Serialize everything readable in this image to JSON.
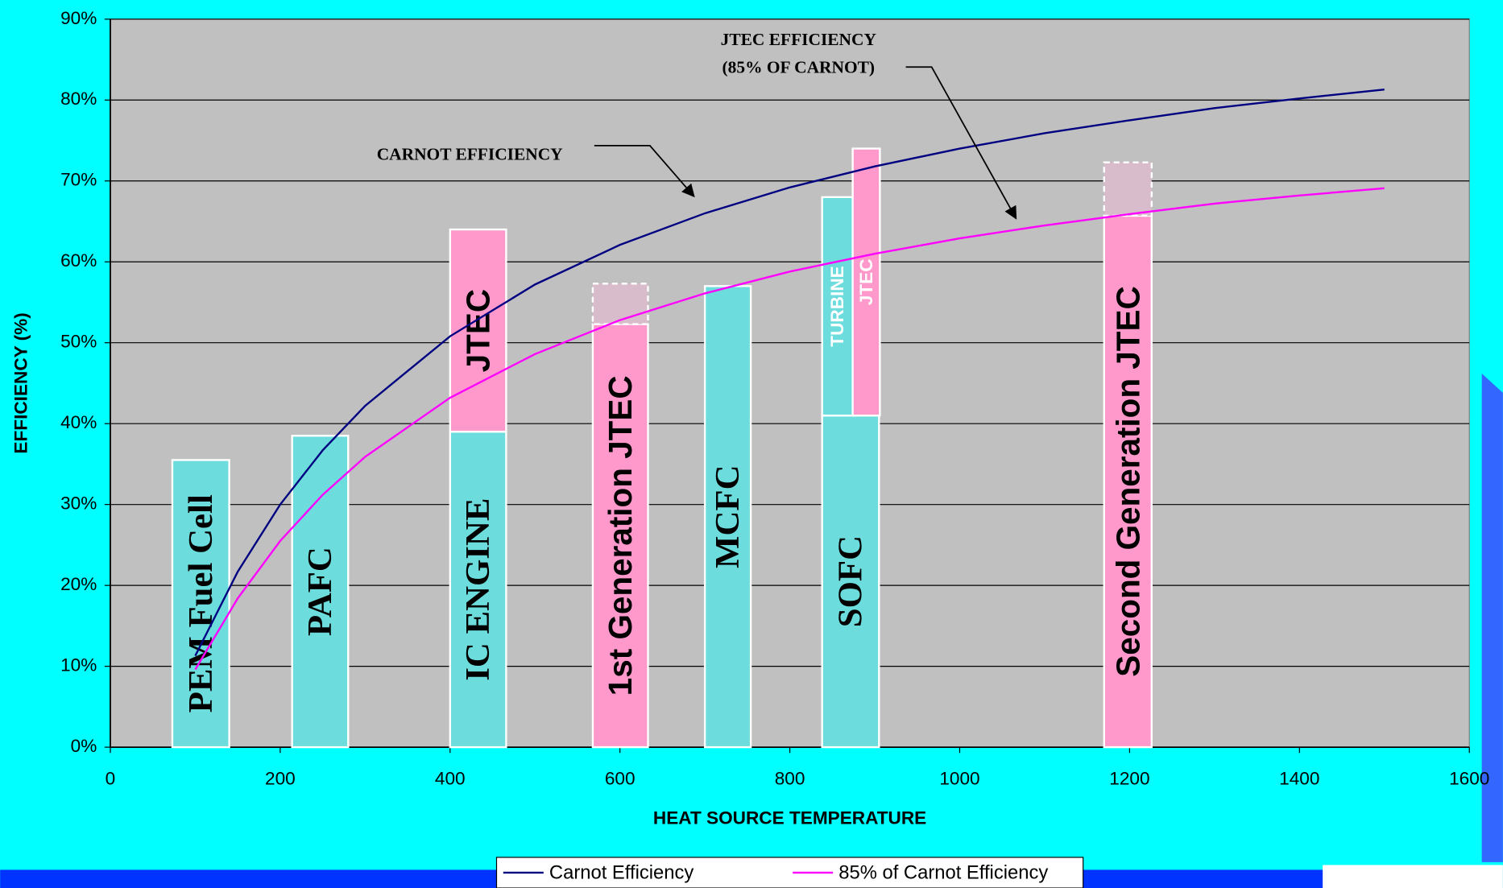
{
  "chart_data": {
    "type": "line",
    "xlabel": "HEAT SOURCE TEMPERATURE",
    "ylabel": "EFFICIENCY (%)",
    "xlim": [
      0,
      1600
    ],
    "ylim": [
      0,
      90
    ],
    "xticks": [
      0,
      200,
      400,
      600,
      800,
      1000,
      1200,
      1400,
      1600
    ],
    "yticks": [
      {
        "value": 0,
        "label": "0%"
      },
      {
        "value": 10,
        "label": "10%"
      },
      {
        "value": 20,
        "label": "20%"
      },
      {
        "value": 30,
        "label": "30%"
      },
      {
        "value": 40,
        "label": "40%"
      },
      {
        "value": 50,
        "label": "50%"
      },
      {
        "value": 60,
        "label": "60%"
      },
      {
        "value": 70,
        "label": "70%"
      },
      {
        "value": 80,
        "label": "80%"
      },
      {
        "value": 90,
        "label": "90%"
      }
    ],
    "grid": true,
    "x": [
      100,
      150,
      200,
      250,
      300,
      400,
      500,
      600,
      700,
      800,
      900,
      1000,
      1100,
      1200,
      1300,
      1400,
      1500
    ],
    "series": [
      {
        "name": "Carnot Efficiency",
        "color": "#000080",
        "values": [
          11.3,
          21.7,
          30.0,
          36.7,
          42.2,
          50.8,
          57.2,
          62.1,
          66.0,
          69.2,
          71.8,
          74.0,
          75.9,
          77.5,
          79.0,
          80.2,
          81.3
        ]
      },
      {
        "name": "85% of Carnot Efficiency",
        "color": "#FF00FF",
        "values": [
          9.6,
          18.4,
          25.5,
          31.2,
          35.9,
          43.2,
          48.6,
          52.8,
          56.1,
          58.8,
          61.0,
          62.9,
          64.5,
          65.9,
          67.2,
          68.2,
          69.1
        ]
      }
    ],
    "bars": [
      {
        "label": "PEM  Fuel Cell",
        "x": [
          73,
          140
        ],
        "y": [
          0,
          35.5
        ],
        "color": "#6CDCDC",
        "font": "serif",
        "text_color": "#000000"
      },
      {
        "label": "PAFC",
        "x": [
          214,
          280
        ],
        "y": [
          0,
          38.5
        ],
        "color": "#6CDCDC",
        "font": "serif",
        "text_color": "#000000"
      },
      {
        "label": "IC ENGINE",
        "x": [
          400,
          466
        ],
        "y": [
          0,
          39
        ],
        "color": "#6CDCDC",
        "font": "serif",
        "text_color": "#000000"
      },
      {
        "label": "JTEC",
        "x": [
          400,
          466
        ],
        "y": [
          39,
          64
        ],
        "color": "#FF99CC",
        "font": "sans",
        "text_color": "#000000"
      },
      {
        "label": "1st Generation JTEC",
        "x": [
          568,
          633
        ],
        "y": [
          0,
          52.3
        ],
        "color": "#FF99CC",
        "font": "sans",
        "text_color": "#000000"
      },
      {
        "x": [
          568,
          633
        ],
        "y": [
          52.3,
          57.3
        ],
        "color": "#D8BCCB",
        "dashed": true
      },
      {
        "label": "MCFC",
        "x": [
          700,
          754
        ],
        "y": [
          0,
          57
        ],
        "color": "#6CDCDC",
        "font": "serif",
        "text_color": "#000000"
      },
      {
        "label": "SOFC",
        "x": [
          838,
          905
        ],
        "y": [
          0,
          41
        ],
        "color": "#6CDCDC",
        "font": "serif",
        "text_color": "#000000"
      },
      {
        "label": "TURBINE",
        "x": [
          838,
          874
        ],
        "y": [
          41,
          68
        ],
        "color": "#6CDCDC",
        "font": "sans-small",
        "text_color": "#FFFFFF"
      },
      {
        "label": "JTEC",
        "x": [
          874,
          906
        ],
        "y": [
          41,
          74
        ],
        "color": "#FF99CC",
        "font": "sans-small",
        "text_color": "#FFFFFF"
      },
      {
        "label": "Second Generation JTEC",
        "x": [
          1170,
          1226
        ],
        "y": [
          0,
          65.7
        ],
        "color": "#FF99CC",
        "font": "sans",
        "text_color": "#000000"
      },
      {
        "x": [
          1170,
          1226
        ],
        "y": [
          65.7,
          72.3
        ],
        "color": "#D8BCCB",
        "dashed": true
      }
    ],
    "annotations": [
      "CARNOT EFFICIENCY",
      "JTEC EFFICIENCY",
      "(85% OF CARNOT)"
    ]
  }
}
